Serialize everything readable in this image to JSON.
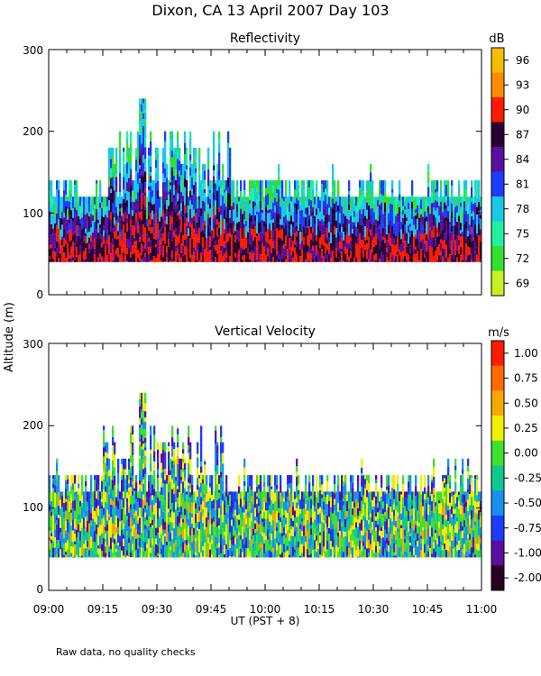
{
  "title": "Dixon, CA 13 April 2007  Day 103",
  "ylabel": "Altitude (m)",
  "xlabel": "UT  (PST + 8)",
  "footnote": "Raw data, no quality checks",
  "x_ticks": [
    "09:00",
    "09:15",
    "09:30",
    "09:45",
    "10:00",
    "10:15",
    "10:30",
    "10:45",
    "11:00"
  ],
  "chart_data": [
    {
      "type": "heatmap",
      "title": "Reflectivity",
      "x_range": [
        "09:00",
        "11:00"
      ],
      "ylim": [
        0,
        300
      ],
      "y_ticks": [
        0,
        100,
        200,
        300
      ],
      "colorbar_unit": "dB",
      "colorbar_labels": [
        "96",
        "93",
        "90",
        "87",
        "84",
        "81",
        "78",
        "75",
        "72",
        "69"
      ],
      "colorbar_colors": [
        "#f8bc00",
        "#ff8c00",
        "#ff1a00",
        "#2a0033",
        "#5a0fa0",
        "#1c3cff",
        "#18c8e6",
        "#20f0a0",
        "#30e030",
        "#c8f020"
      ],
      "min_altitude": 40,
      "typical_top": 120,
      "max_top": 240
    },
    {
      "type": "heatmap",
      "title": "Vertical Velocity",
      "x_range": [
        "09:00",
        "11:00"
      ],
      "ylim": [
        0,
        300
      ],
      "y_ticks": [
        0,
        100,
        200,
        300
      ],
      "colorbar_unit": "m/s",
      "colorbar_labels": [
        "1.00",
        "0.75",
        "0.50",
        "0.25",
        "0.00",
        "-0.25",
        "-0.50",
        "-0.75",
        "-1.00",
        "-2.00"
      ],
      "colorbar_colors": [
        "#ff1a00",
        "#ff6a00",
        "#f8a800",
        "#f0f000",
        "#40e030",
        "#10c890",
        "#1890f0",
        "#1c3cff",
        "#5a0fa0",
        "#2a0020"
      ],
      "min_altitude": 40,
      "typical_top": 120,
      "max_top": 240
    }
  ]
}
